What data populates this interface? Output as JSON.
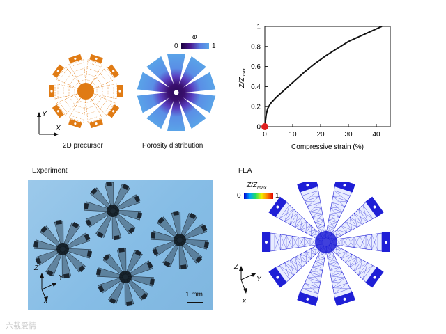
{
  "panels": {
    "precursor": {
      "caption": "2D precursor",
      "axis_x": "X",
      "axis_y": "Y"
    },
    "porosity": {
      "caption": "Porosity distribution",
      "colorbar_symbol": "φ",
      "colorbar_min": "0",
      "colorbar_max": "1"
    },
    "experiment": {
      "title": "Experiment",
      "scalebar": "1 mm",
      "axis_x": "X",
      "axis_y": "Y",
      "axis_z": "Z"
    },
    "fea": {
      "title": "FEA",
      "colorbar_label_main": "Z",
      "colorbar_label_sub": "max",
      "colorbar_min": "0",
      "colorbar_max": "1",
      "axis_x": "X",
      "axis_y": "Y",
      "axis_z": "Z"
    }
  },
  "colors": {
    "precursor": "#e07b14",
    "porosity_outer": "#5aa6e8",
    "porosity_inner": "#3a0f6e",
    "fea_pad": "#1f1fd6",
    "photo_bg": "#8cc2e8"
  },
  "chart_data": {
    "type": "line",
    "xlabel": "Compressive strain (%)",
    "ylabel_main": "Z",
    "ylabel_sub": "max",
    "xlim": [
      0,
      45
    ],
    "ylim": [
      0,
      1
    ],
    "xticks": [
      "0",
      "10",
      "20",
      "30",
      "40"
    ],
    "yticks": [
      "0",
      "0.2",
      "0.4",
      "0.6",
      "0.8",
      "1"
    ],
    "x": [
      0,
      0.5,
      1,
      2,
      4,
      6,
      8,
      10,
      14,
      18,
      22,
      26,
      30,
      34,
      38,
      42
    ],
    "y": [
      0,
      0.12,
      0.18,
      0.23,
      0.29,
      0.34,
      0.39,
      0.44,
      0.54,
      0.63,
      0.71,
      0.78,
      0.85,
      0.9,
      0.95,
      1.0
    ],
    "marker_point": {
      "x": 0,
      "y": 0,
      "color": "#e02020"
    },
    "grid": false
  },
  "watermark": "六载爱情"
}
